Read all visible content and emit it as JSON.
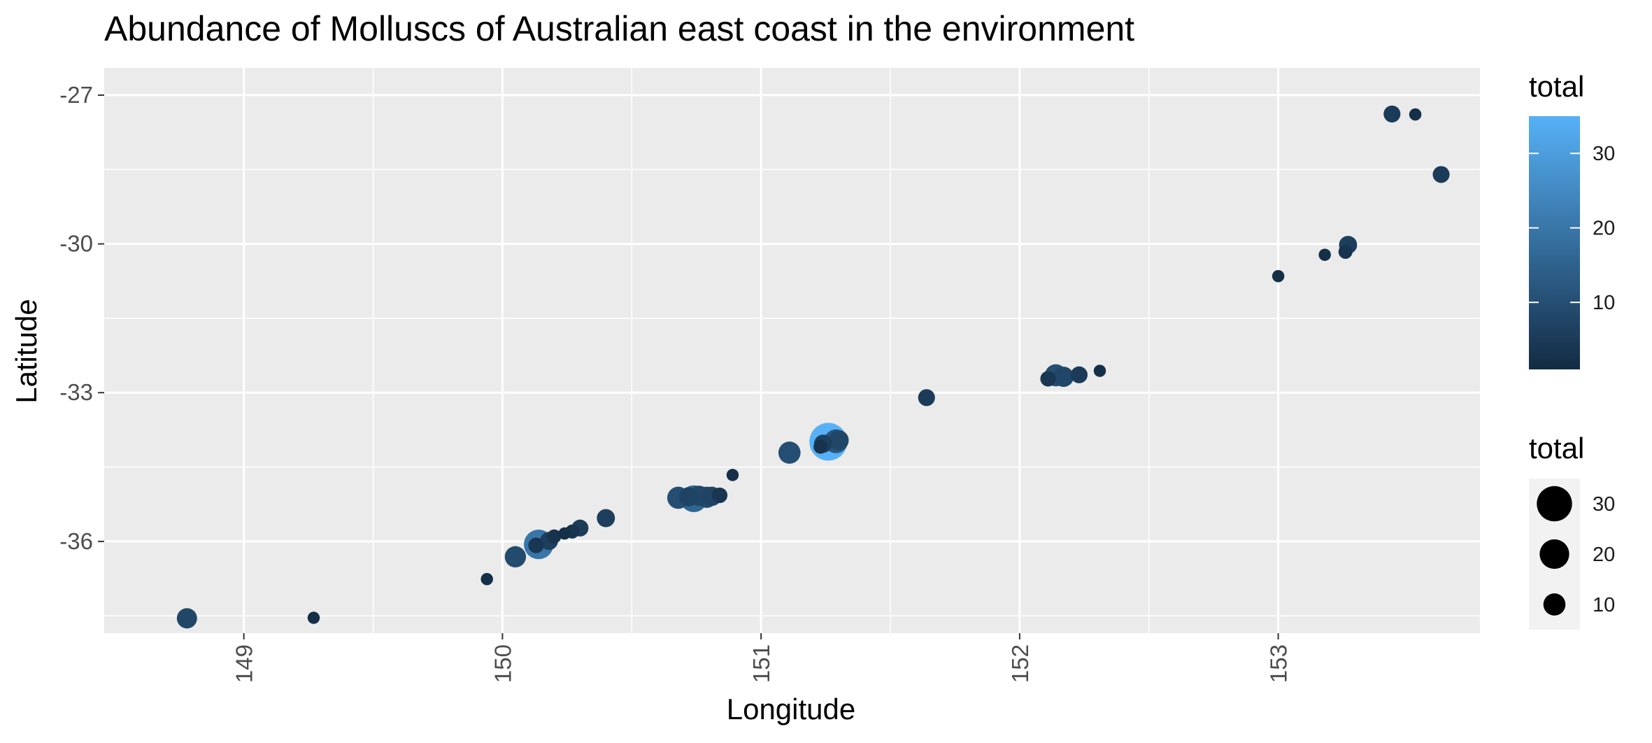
{
  "chart_data": {
    "type": "scatter",
    "title": "Abundance of Molluscs of Australian east coast in the environment",
    "xlabel": "Longitude",
    "ylabel": "Latitude",
    "xlim": [
      148.46,
      153.78
    ],
    "ylim": [
      -37.85,
      -26.45
    ],
    "x_ticks": [
      149,
      150,
      151,
      152,
      153
    ],
    "y_ticks": [
      -27,
      -30,
      -33,
      -36
    ],
    "grid": true,
    "legend_placement": "right",
    "legends": {
      "color": {
        "title": "total",
        "labels": [
          10,
          20,
          30
        ],
        "range": [
          1,
          35
        ],
        "low": "#132B43",
        "high": "#56B1F7"
      },
      "size": {
        "title": "total",
        "labels": [
          30,
          20,
          10
        ]
      }
    },
    "points": [
      {
        "x": 148.78,
        "y": -37.55,
        "total": 8
      },
      {
        "x": 149.27,
        "y": -37.54,
        "total": 2
      },
      {
        "x": 149.94,
        "y": -36.76,
        "total": 2
      },
      {
        "x": 150.05,
        "y": -36.31,
        "total": 9
      },
      {
        "x": 150.13,
        "y": -36.08,
        "total": 4
      },
      {
        "x": 150.14,
        "y": -36.06,
        "total": 20
      },
      {
        "x": 150.18,
        "y": -35.99,
        "total": 6
      },
      {
        "x": 150.2,
        "y": -35.9,
        "total": 3
      },
      {
        "x": 150.24,
        "y": -35.84,
        "total": 2
      },
      {
        "x": 150.27,
        "y": -35.8,
        "total": 3
      },
      {
        "x": 150.3,
        "y": -35.73,
        "total": 5
      },
      {
        "x": 150.4,
        "y": -35.53,
        "total": 6
      },
      {
        "x": 150.68,
        "y": -35.12,
        "total": 10
      },
      {
        "x": 150.72,
        "y": -35.1,
        "total": 7
      },
      {
        "x": 150.74,
        "y": -35.14,
        "total": 16
      },
      {
        "x": 150.76,
        "y": -35.08,
        "total": 8
      },
      {
        "x": 150.79,
        "y": -35.11,
        "total": 9
      },
      {
        "x": 150.81,
        "y": -35.09,
        "total": 7
      },
      {
        "x": 150.84,
        "y": -35.07,
        "total": 4
      },
      {
        "x": 150.89,
        "y": -34.66,
        "total": 2
      },
      {
        "x": 151.11,
        "y": -34.21,
        "total": 10
      },
      {
        "x": 151.23,
        "y": -34.09,
        "total": 3
      },
      {
        "x": 151.24,
        "y": -34.03,
        "total": 6
      },
      {
        "x": 151.26,
        "y": -33.99,
        "total": 35
      },
      {
        "x": 151.29,
        "y": -33.98,
        "total": 12
      },
      {
        "x": 151.3,
        "y": -33.96,
        "total": 8
      },
      {
        "x": 151.64,
        "y": -33.1,
        "total": 5
      },
      {
        "x": 152.11,
        "y": -32.72,
        "total": 4
      },
      {
        "x": 152.14,
        "y": -32.65,
        "total": 10
      },
      {
        "x": 152.17,
        "y": -32.68,
        "total": 8
      },
      {
        "x": 152.23,
        "y": -32.64,
        "total": 5
      },
      {
        "x": 152.31,
        "y": -32.56,
        "total": 2
      },
      {
        "x": 153.0,
        "y": -30.65,
        "total": 2
      },
      {
        "x": 153.18,
        "y": -30.22,
        "total": 2
      },
      {
        "x": 153.26,
        "y": -30.16,
        "total": 3
      },
      {
        "x": 153.27,
        "y": -30.02,
        "total": 6
      },
      {
        "x": 153.44,
        "y": -27.38,
        "total": 5
      },
      {
        "x": 153.53,
        "y": -27.39,
        "total": 2
      },
      {
        "x": 153.63,
        "y": -28.6,
        "total": 5
      }
    ]
  }
}
